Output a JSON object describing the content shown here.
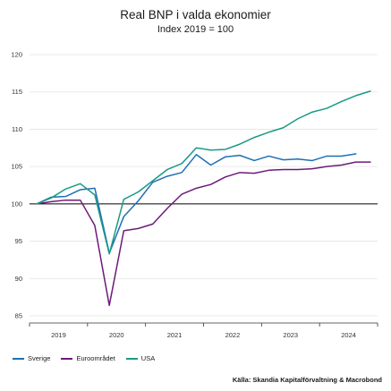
{
  "chart_data": {
    "type": "line",
    "title": "Real BNP i valda ekonomier",
    "subtitle": "Index 2019 = 100",
    "xlabel": "",
    "ylabel": "",
    "x_tick_labels": [
      "2019",
      "2020",
      "2021",
      "2022",
      "2023",
      "2024"
    ],
    "y_ticks": [
      85,
      90,
      95,
      100,
      105,
      110,
      115,
      120
    ],
    "ylim": [
      85,
      120
    ],
    "xlim": [
      2018.875,
      2024.875
    ],
    "reference_line": 100,
    "grid": true,
    "legend_position": "bottom-left",
    "series": [
      {
        "name": "Sverige",
        "color": "#1f6fb4",
        "x": [
          2019.0,
          2019.25,
          2019.5,
          2019.75,
          2020.0,
          2020.25,
          2020.5,
          2020.75,
          2021.0,
          2021.25,
          2021.5,
          2021.75,
          2022.0,
          2022.25,
          2022.5,
          2022.75,
          2023.0,
          2023.25,
          2023.5,
          2023.75,
          2024.0,
          2024.25,
          2024.5
        ],
        "values": [
          100.0,
          100.9,
          101.0,
          101.9,
          102.1,
          93.4,
          98.3,
          100.4,
          102.9,
          103.7,
          104.2,
          106.6,
          105.2,
          106.3,
          106.5,
          105.8,
          106.4,
          105.9,
          106.0,
          105.8,
          106.4,
          106.4,
          106.7
        ]
      },
      {
        "name": "Euroområdet",
        "color": "#6d1a7a",
        "x": [
          2019.0,
          2019.25,
          2019.5,
          2019.75,
          2020.0,
          2020.25,
          2020.5,
          2020.75,
          2021.0,
          2021.25,
          2021.5,
          2021.75,
          2022.0,
          2022.25,
          2022.5,
          2022.75,
          2023.0,
          2023.25,
          2023.5,
          2023.75,
          2024.0,
          2024.25,
          2024.5,
          2024.75
        ],
        "values": [
          100.0,
          100.3,
          100.5,
          100.5,
          97.1,
          86.4,
          96.4,
          96.7,
          97.3,
          99.4,
          101.3,
          102.1,
          102.6,
          103.6,
          104.2,
          104.1,
          104.5,
          104.6,
          104.6,
          104.7,
          105.0,
          105.2,
          105.6,
          105.6
        ]
      },
      {
        "name": "USA",
        "color": "#1a9a86",
        "x": [
          2019.0,
          2019.25,
          2019.5,
          2019.75,
          2020.0,
          2020.25,
          2020.5,
          2020.75,
          2021.0,
          2021.25,
          2021.5,
          2021.75,
          2022.0,
          2022.25,
          2022.5,
          2022.75,
          2023.0,
          2023.25,
          2023.5,
          2023.75,
          2024.0,
          2024.25,
          2024.5,
          2024.75
        ],
        "values": [
          100.0,
          100.8,
          102.0,
          102.7,
          101.2,
          93.3,
          100.6,
          101.6,
          103.1,
          104.6,
          105.4,
          107.5,
          107.2,
          107.3,
          108.0,
          108.9,
          109.6,
          110.2,
          111.4,
          112.3,
          112.8,
          113.7,
          114.5,
          115.1
        ]
      }
    ]
  },
  "source": "Källa: Skandia Kapitalförvaltning & Macrobond"
}
